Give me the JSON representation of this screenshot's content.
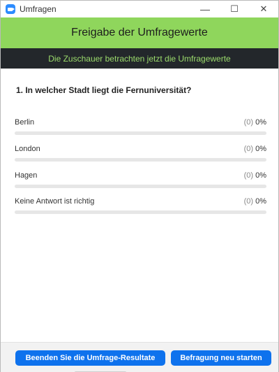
{
  "window": {
    "title": "Umfragen",
    "minimize": "—",
    "maximize": "☐",
    "close": "✕"
  },
  "header": {
    "title": "Freigabe der Umfragewerte",
    "subtitle": "Die Zuschauer betrachten jetzt die Umfragewerte"
  },
  "poll": {
    "question": "1. In welcher Stadt liegt die Fernuniversität?",
    "answers": [
      {
        "label": "Berlin",
        "count": "(0)",
        "percent": "0%",
        "fraction": 0
      },
      {
        "label": "London",
        "count": "(0)",
        "percent": "0%",
        "fraction": 0
      },
      {
        "label": "Hagen",
        "count": "(0)",
        "percent": "0%",
        "fraction": 0
      },
      {
        "label": "Keine Antwort ist richtig",
        "count": "(0)",
        "percent": "0%",
        "fraction": 0
      }
    ]
  },
  "footer": {
    "end_label": "Beenden Sie die Umfrage-Resultate",
    "restart_label": "Befragung neu starten"
  },
  "colors": {
    "header_green": "#8fd65c",
    "subheader_dark": "#23272b",
    "subheader_text": "#9bdb6c",
    "button_blue": "#0e72ed"
  }
}
